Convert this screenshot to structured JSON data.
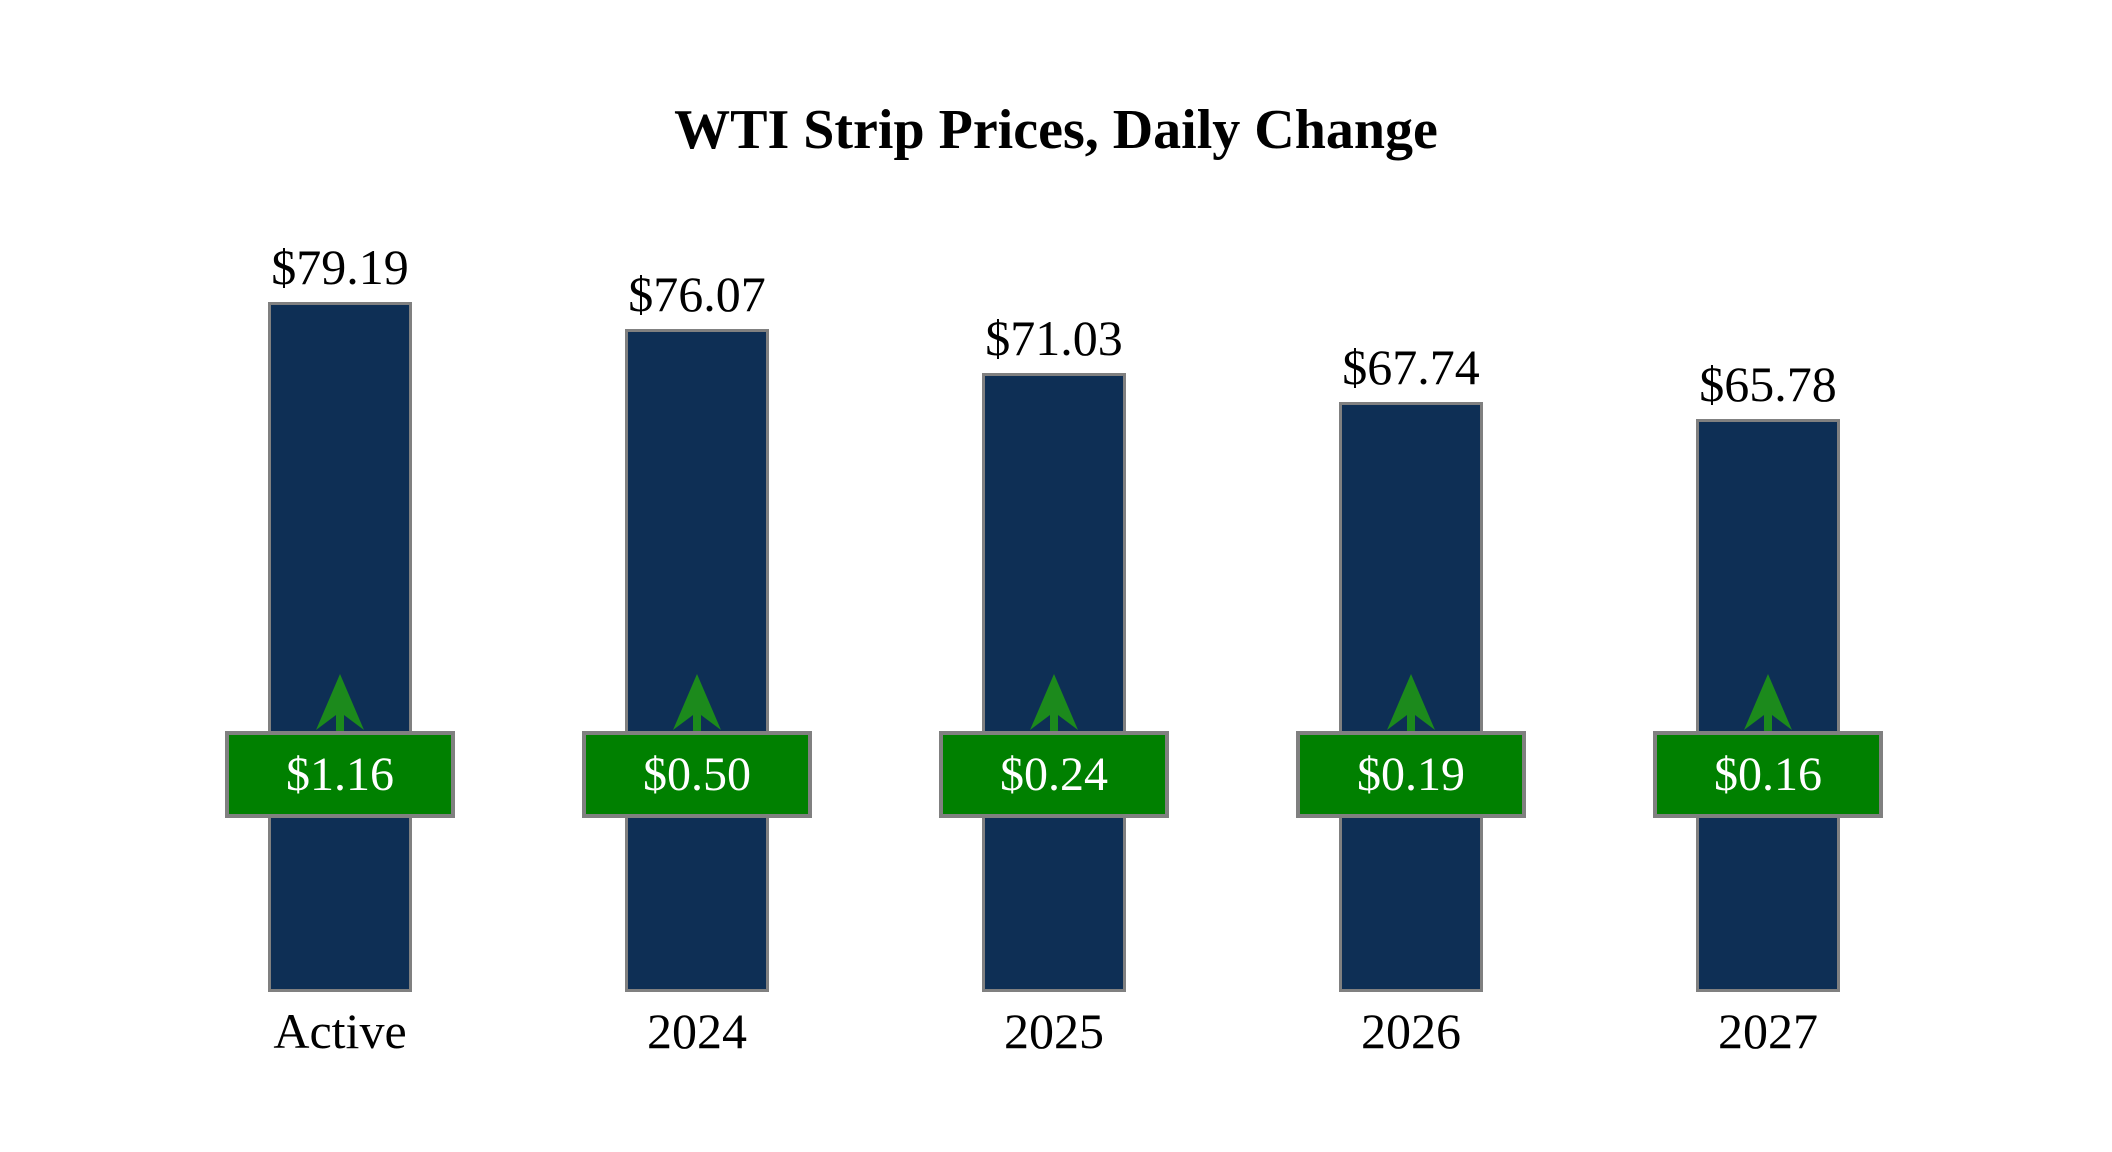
{
  "title": "WTI Strip Prices, Daily Change",
  "chart_data": {
    "type": "bar",
    "title": "WTI Strip Prices, Daily Change",
    "categories": [
      "Active",
      "2024",
      "2025",
      "2026",
      "2027"
    ],
    "series": [
      {
        "name": "WTI strip price",
        "values": [
          79.19,
          76.07,
          71.03,
          67.74,
          65.78
        ],
        "labels": [
          "$79.19",
          "$76.07",
          "$71.03",
          "$67.74",
          "$65.78"
        ]
      },
      {
        "name": "Daily change",
        "values": [
          1.16,
          0.5,
          0.24,
          0.19,
          0.16
        ],
        "labels": [
          "$1.16",
          "$0.50",
          "$0.24",
          "$0.19",
          "$0.16"
        ],
        "direction": "up"
      }
    ],
    "baseline": 0,
    "ylim": [
      0,
      85
    ],
    "grid": false,
    "legend": "none",
    "xlabel": "",
    "ylabel": "",
    "colors": {
      "bar_fill": "#0e2f55",
      "bar_border": "#808080",
      "change_badge_fill": "#008000",
      "change_badge_border": "#808080",
      "arrow": "#1c8a1c",
      "value_text": "#000000",
      "change_text": "#ffffff",
      "category_text": "#000000",
      "title_text": "#000000",
      "background": "#ffffff"
    }
  }
}
